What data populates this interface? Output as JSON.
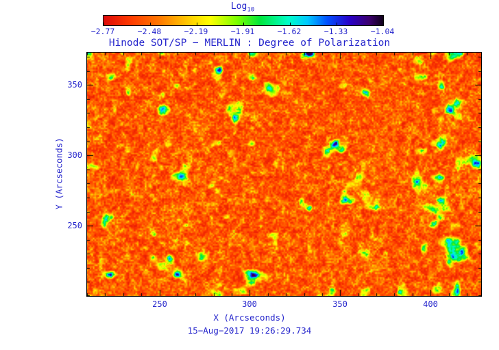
{
  "colorbar": {
    "title": "Log",
    "title_subscript": "10",
    "tick_labels": [
      "−2.77",
      "−2.48",
      "−2.19",
      "−1.91",
      "−1.62",
      "−1.33",
      "−1.04"
    ]
  },
  "plot": {
    "title": "Hinode SOT/SP − MERLIN : Degree of Polarization",
    "xlabel": "X (Arcseconds)",
    "ylabel": "Y (Arcseconds)",
    "caption": "15−Aug−2017 19:26:29.734"
  },
  "style": {
    "text_color": "#2525cc",
    "axis_color": "#000000"
  },
  "chart_data": {
    "type": "heatmap",
    "title": "Hinode SOT/SP − MERLIN : Degree of Polarization",
    "xlabel": "X (Arcseconds)",
    "ylabel": "Y (Arcseconds)",
    "colorbar_label": "Log10",
    "colorbar_ticks": [
      -2.77,
      -2.48,
      -2.19,
      -1.91,
      -1.62,
      -1.33,
      -1.04
    ],
    "value_range_log10": [
      -2.77,
      -1.04
    ],
    "x_range_arcsec": [
      210,
      428
    ],
    "y_range_arcsec": [
      200,
      373
    ],
    "x_major_ticks": [
      250,
      300,
      350,
      400
    ],
    "y_major_ticks": [
      250,
      300,
      350
    ],
    "minor_tick_step_arcsec": 10,
    "colormap_stops": [
      {
        "t": 0.0,
        "color": "#dd0a0a"
      },
      {
        "t": 0.1,
        "color": "#ff3c00"
      },
      {
        "t": 0.2,
        "color": "#ff7800"
      },
      {
        "t": 0.3,
        "color": "#ffc800"
      },
      {
        "t": 0.38,
        "color": "#ffff00"
      },
      {
        "t": 0.48,
        "color": "#78ff00"
      },
      {
        "t": 0.56,
        "color": "#00e63c"
      },
      {
        "t": 0.66,
        "color": "#00ffc8"
      },
      {
        "t": 0.73,
        "color": "#00c8ff"
      },
      {
        "t": 0.8,
        "color": "#0050ff"
      },
      {
        "t": 0.88,
        "color": "#2800c8"
      },
      {
        "t": 0.95,
        "color": "#3c006e"
      },
      {
        "t": 1.0,
        "color": "#0f0019"
      }
    ],
    "description": "Solar degree-of-polarization map: dominant red-orange noisy background near log10 p ≈ −2.5 with fine yellow speckle, and scattered green/cyan/blue patches (log10 p ≳ −1.6, blue cores near −1.1) tracing magnetic network elements. Field rendered procedurally to match overall texture."
  }
}
